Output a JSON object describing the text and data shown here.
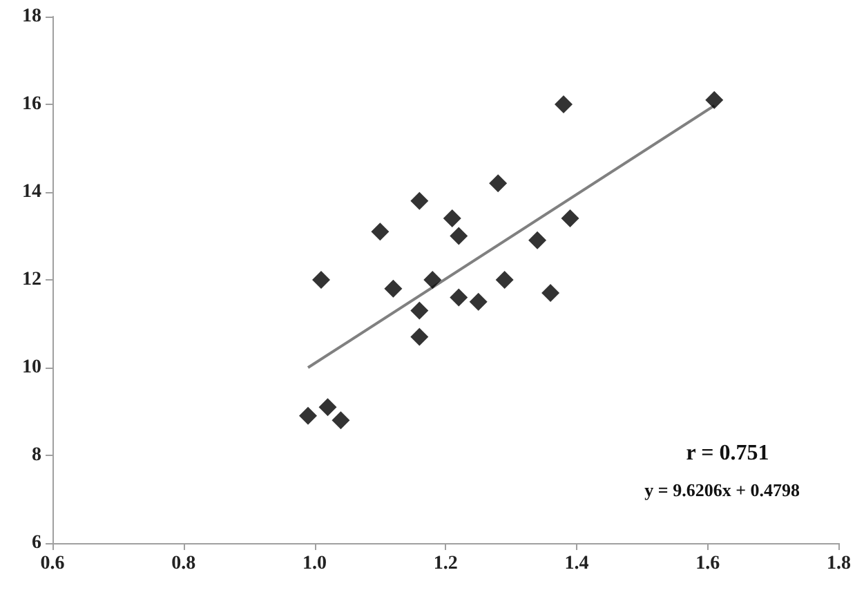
{
  "chart_data": {
    "type": "scatter",
    "x": [
      0.99,
      1.02,
      1.04,
      1.01,
      1.1,
      1.16,
      1.21,
      1.22,
      1.12,
      1.18,
      1.16,
      1.16,
      1.22,
      1.25,
      1.29,
      1.28,
      1.34,
      1.36,
      1.39,
      1.38,
      1.61
    ],
    "series": [
      {
        "color": "#000000",
        "marker": "diamond",
        "values": [
          8.9,
          9.1,
          8.8,
          12.0,
          13.1,
          13.8,
          13.4,
          13.0,
          11.8,
          12.0,
          11.3,
          10.7,
          11.6,
          11.5,
          12.0,
          14.2,
          12.9,
          11.7,
          13.4,
          16.0,
          16.1
        ]
      },
      {
        "type": "line",
        "color": "#808080",
        "marker": "none",
        "x": [
          0.99,
          1.61
        ],
        "values": [
          10.0,
          15.97
        ]
      }
    ],
    "xlim": [
      0.6,
      1.8
    ],
    "xticks": [
      {
        "value": 0.6,
        "label": "0.6"
      },
      {
        "value": 0.8,
        "label": "0.8"
      },
      {
        "value": 1.0,
        "label": "1.0"
      },
      {
        "value": 1.2,
        "label": "1.2"
      },
      {
        "value": 1.4,
        "label": "1.4"
      },
      {
        "value": 1.6,
        "label": "1.6"
      },
      {
        "value": 1.8,
        "label": "1.8"
      }
    ],
    "ylim": [
      6,
      18
    ],
    "yticks": [
      6,
      8,
      10,
      12,
      14,
      16,
      18
    ],
    "annotations": [
      "r = 0.751",
      "y = 9.6206x + 0.4798"
    ]
  }
}
